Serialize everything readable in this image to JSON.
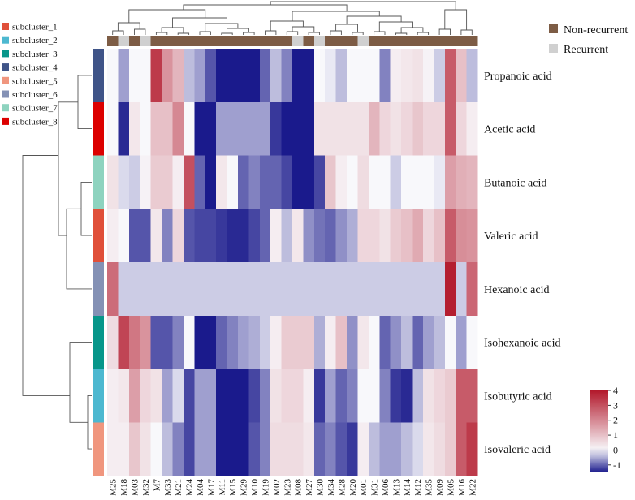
{
  "chart_data": {
    "type": "heatmap",
    "title": "",
    "columns": [
      "M25",
      "M18",
      "M03",
      "M32",
      "M7",
      "M33",
      "M21",
      "M24",
      "M04",
      "M17",
      "M11",
      "M15",
      "M29",
      "M10",
      "M19",
      "M02",
      "M23",
      "M08",
      "M27",
      "M30",
      "M34",
      "M28",
      "M20",
      "M01",
      "M31",
      "M06",
      "M13",
      "M14",
      "M12",
      "M35",
      "M09",
      "M05",
      "M16",
      "M22"
    ],
    "rows": [
      "Propanoic acid",
      "Acetic acid",
      "Butanoic acid",
      "Valeric acid",
      "Hexanoic acid",
      "Isohexanoic acid",
      "Isobutyric acid",
      "Isovaleric acid"
    ],
    "values": [
      [
        0.0,
        -0.6,
        0.0,
        0.0,
        3.4,
        1.8,
        1.2,
        -0.4,
        -0.6,
        -1.1,
        -1.6,
        -1.9,
        -1.9,
        -1.5,
        -1.0,
        -0.4,
        -0.8,
        -2.0,
        -1.5,
        0.0,
        -0.1,
        -0.4,
        0.0,
        0.0,
        0.0,
        -0.8,
        0.2,
        0.3,
        0.4,
        0.1,
        -0.3,
        2.8,
        1.0,
        -0.4
      ],
      [
        0.0,
        -1.4,
        0.3,
        0.0,
        1.0,
        1.0,
        2.0,
        0.0,
        -1.8,
        -3.2,
        -0.6,
        -0.6,
        -0.6,
        -0.6,
        -0.6,
        -1.3,
        -2.0,
        -3.3,
        -3.3,
        0.4,
        0.4,
        0.4,
        0.4,
        0.4,
        1.2,
        0.6,
        0.4,
        0.6,
        0.9,
        0.6,
        0.6,
        2.8,
        0.6,
        0.2
      ],
      [
        0.4,
        -0.2,
        -0.3,
        0.1,
        0.8,
        0.8,
        0.2,
        3.0,
        -1.0,
        -2.2,
        0.3,
        0.0,
        -1.0,
        -0.8,
        -1.0,
        -1.0,
        -1.2,
        -1.6,
        -1.6,
        -1.2,
        0.9,
        0.2,
        0.0,
        0.5,
        0.0,
        0.0,
        -0.3,
        0.0,
        0.0,
        0.0,
        -0.1,
        1.6,
        1.3,
        1.2
      ],
      [
        0.2,
        0.0,
        -1.1,
        -1.1,
        0.3,
        -0.8,
        0.6,
        -1.1,
        -1.2,
        -1.2,
        -1.3,
        -1.4,
        -1.4,
        -1.2,
        -1.0,
        0.2,
        -0.4,
        0.3,
        -0.7,
        -0.9,
        -1.0,
        -0.7,
        -0.5,
        0.6,
        0.6,
        0.4,
        0.8,
        1.0,
        1.4,
        0.6,
        1.0,
        2.8,
        1.9,
        1.8
      ],
      [
        2.5,
        -0.3,
        -0.3,
        -0.3,
        -0.3,
        -0.3,
        -0.3,
        -0.3,
        -0.3,
        -0.3,
        -0.3,
        -0.3,
        -0.3,
        -0.3,
        -0.3,
        -0.3,
        -0.3,
        -0.3,
        -0.3,
        -0.3,
        -0.3,
        -0.3,
        -0.3,
        -0.3,
        -0.3,
        -0.3,
        -0.3,
        -0.3,
        -0.3,
        -0.3,
        -0.3,
        3.9,
        -0.3,
        2.6
      ],
      [
        0.5,
        3.2,
        2.3,
        1.8,
        -1.1,
        -1.1,
        -0.8,
        0.0,
        -1.5,
        -1.5,
        -1.0,
        -0.8,
        -0.6,
        -0.5,
        -0.3,
        0.2,
        0.8,
        0.8,
        0.8,
        -0.5,
        0.2,
        1.0,
        -0.7,
        0.3,
        0.0,
        -1.0,
        -0.7,
        -0.4,
        -1.0,
        -0.6,
        -0.4,
        0.0,
        -0.6,
        0.0
      ],
      [
        0.2,
        0.3,
        1.6,
        0.6,
        0.4,
        -0.6,
        -0.2,
        -1.2,
        -0.6,
        -0.6,
        -1.5,
        -1.6,
        -1.6,
        -1.2,
        -0.8,
        0.4,
        0.6,
        0.6,
        0.2,
        -1.3,
        -0.6,
        -1.0,
        -0.8,
        0.0,
        0.0,
        -0.8,
        -1.3,
        -1.4,
        -0.4,
        0.4,
        0.6,
        0.8,
        2.8,
        2.8
      ],
      [
        0.2,
        0.2,
        0.9,
        0.4,
        0.0,
        -0.4,
        -0.8,
        -1.2,
        -0.6,
        -0.6,
        -1.5,
        -1.5,
        -1.5,
        -1.1,
        -0.8,
        0.5,
        0.5,
        0.5,
        0.3,
        -1.0,
        -0.8,
        -1.1,
        -1.3,
        0.2,
        -0.4,
        -0.6,
        -0.6,
        -0.4,
        -0.2,
        0.3,
        0.5,
        0.8,
        2.8,
        3.4
      ]
    ],
    "column_annotation": [
      "Non-recurrent",
      "Recurrent",
      "Non-recurrent",
      "Recurrent",
      "Non-recurrent",
      "Non-recurrent",
      "Non-recurrent",
      "Non-recurrent",
      "Non-recurrent",
      "Non-recurrent",
      "Non-recurrent",
      "Non-recurrent",
      "Non-recurrent",
      "Non-recurrent",
      "Non-recurrent",
      "Non-recurrent",
      "Non-recurrent",
      "Recurrent",
      "Non-recurrent",
      "Recurrent",
      "Non-recurrent",
      "Non-recurrent",
      "Non-recurrent",
      "Recurrent",
      "Non-recurrent",
      "Non-recurrent",
      "Non-recurrent",
      "Non-recurrent",
      "Non-recurrent",
      "Non-recurrent",
      "Non-recurrent",
      "Non-recurrent",
      "Non-recurrent",
      "Non-recurrent"
    ],
    "row_annotation": [
      "subcluster_4",
      "subcluster_8",
      "subcluster_7",
      "subcluster_1",
      "subcluster_6",
      "subcluster_3",
      "subcluster_2",
      "subcluster_5"
    ],
    "color_scale": {
      "min": -1.5,
      "mid": 0,
      "max": 4,
      "colors": {
        "low": "#1a1a8c",
        "mid": "#f8f8fb",
        "high": "#b2182b"
      },
      "ticks": [
        "4",
        "3",
        "2",
        "1",
        "0",
        "-1"
      ]
    },
    "group_legend": [
      {
        "label": "Non-recurrent",
        "color": "#7d5c45"
      },
      {
        "label": "Recurrent",
        "color": "#d0d0d0"
      }
    ],
    "subcluster_legend": [
      {
        "label": "subcluster_1",
        "color": "#e0503a"
      },
      {
        "label": "subcluster_2",
        "color": "#4db8d0"
      },
      {
        "label": "subcluster_3",
        "color": "#07968a"
      },
      {
        "label": "subcluster_4",
        "color": "#3f5488"
      },
      {
        "label": "subcluster_5",
        "color": "#f0967e"
      },
      {
        "label": "subcluster_6",
        "color": "#8491b5"
      },
      {
        "label": "subcluster_7",
        "color": "#8ed3bf"
      },
      {
        "label": "subcluster_8",
        "color": "#dc0000"
      }
    ]
  }
}
